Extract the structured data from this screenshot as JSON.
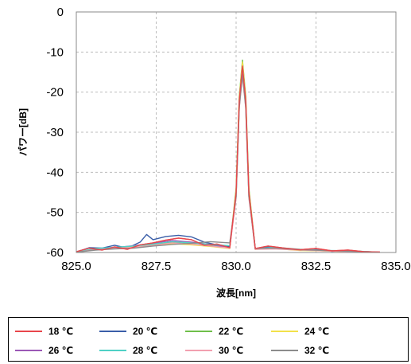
{
  "chart_data": {
    "type": "line",
    "xlabel": "波長[nm]",
    "ylabel": "パワー[dB]",
    "xlim": [
      825.0,
      835.0
    ],
    "ylim": [
      -60,
      0
    ],
    "x_ticks": [
      "825.0",
      "827.5",
      "830.0",
      "832.5",
      "835.0"
    ],
    "y_ticks": [
      "0",
      "-10",
      "-20",
      "-30",
      "-40",
      "-50",
      "-60"
    ],
    "grid": true,
    "legend_position": "bottom",
    "series": [
      {
        "name": "18 ℃",
        "color": "#e8464b",
        "peak_x": 830.2,
        "peak_y": -13.5,
        "points": [
          [
            825.0,
            -59.8
          ],
          [
            825.4,
            -58.9
          ],
          [
            825.8,
            -59.4
          ],
          [
            826.2,
            -58.6
          ],
          [
            826.6,
            -59.2
          ],
          [
            827.0,
            -58.1
          ],
          [
            827.4,
            -57.6
          ],
          [
            827.8,
            -56.9
          ],
          [
            828.2,
            -56.4
          ],
          [
            828.6,
            -56.8
          ],
          [
            829.0,
            -58.2
          ],
          [
            829.4,
            -57.9
          ],
          [
            829.8,
            -58.8
          ],
          [
            830.0,
            -45.0
          ],
          [
            830.1,
            -22.0
          ],
          [
            830.2,
            -13.5
          ],
          [
            830.3,
            -22.0
          ],
          [
            830.4,
            -45.0
          ],
          [
            830.6,
            -59.0
          ],
          [
            831.0,
            -58.4
          ],
          [
            831.5,
            -58.9
          ],
          [
            832.0,
            -59.3
          ],
          [
            832.5,
            -59.0
          ],
          [
            833.0,
            -59.6
          ],
          [
            833.5,
            -59.4
          ],
          [
            834.0,
            -59.8
          ],
          [
            834.5,
            -59.9
          ]
        ]
      },
      {
        "name": "20 ℃",
        "color": "#3a5ea8",
        "peak_x": 830.2,
        "peak_y": -14.5,
        "points": [
          [
            825.0,
            -59.9
          ],
          [
            825.4,
            -58.8
          ],
          [
            825.8,
            -58.9
          ],
          [
            826.2,
            -58.2
          ],
          [
            826.6,
            -58.9
          ],
          [
            827.0,
            -57.4
          ],
          [
            827.2,
            -55.5
          ],
          [
            827.4,
            -56.8
          ],
          [
            827.8,
            -56.0
          ],
          [
            828.2,
            -55.7
          ],
          [
            828.6,
            -56.1
          ],
          [
            829.0,
            -57.4
          ],
          [
            829.4,
            -58.1
          ],
          [
            829.8,
            -58.6
          ],
          [
            830.0,
            -46.0
          ],
          [
            830.1,
            -23.0
          ],
          [
            830.2,
            -14.5
          ],
          [
            830.3,
            -23.0
          ],
          [
            830.4,
            -46.0
          ],
          [
            830.6,
            -59.2
          ],
          [
            831.0,
            -58.6
          ],
          [
            831.5,
            -59.1
          ],
          [
            832.0,
            -59.4
          ],
          [
            832.5,
            -59.2
          ],
          [
            833.0,
            -59.7
          ],
          [
            833.5,
            -59.5
          ],
          [
            834.0,
            -59.9
          ]
        ]
      },
      {
        "name": "22 ℃",
        "color": "#6fbf4a",
        "peak_x": 830.2,
        "peak_y": -12.0,
        "points": [
          [
            825.0,
            -59.9
          ],
          [
            825.6,
            -59.2
          ],
          [
            826.2,
            -58.9
          ],
          [
            826.8,
            -58.8
          ],
          [
            827.4,
            -58.0
          ],
          [
            828.0,
            -57.5
          ],
          [
            828.6,
            -57.9
          ],
          [
            829.2,
            -58.3
          ],
          [
            829.8,
            -58.9
          ],
          [
            830.0,
            -44.0
          ],
          [
            830.1,
            -21.0
          ],
          [
            830.2,
            -12.0
          ],
          [
            830.3,
            -21.0
          ],
          [
            830.4,
            -44.0
          ],
          [
            830.6,
            -59.1
          ],
          [
            831.2,
            -58.9
          ],
          [
            832.0,
            -59.4
          ],
          [
            832.8,
            -59.6
          ],
          [
            833.6,
            -59.7
          ],
          [
            834.4,
            -59.9
          ]
        ]
      },
      {
        "name": "24 ℃",
        "color": "#f2e14a",
        "peak_x": 830.2,
        "peak_y": -12.5,
        "points": [
          [
            825.0,
            -59.9
          ],
          [
            825.6,
            -59.3
          ],
          [
            826.2,
            -59.0
          ],
          [
            826.8,
            -58.6
          ],
          [
            827.4,
            -58.3
          ],
          [
            828.0,
            -57.8
          ],
          [
            828.6,
            -58.1
          ],
          [
            829.2,
            -58.5
          ],
          [
            829.8,
            -59.0
          ],
          [
            830.0,
            -44.5
          ],
          [
            830.1,
            -21.5
          ],
          [
            830.2,
            -12.5
          ],
          [
            830.3,
            -21.5
          ],
          [
            830.4,
            -44.5
          ],
          [
            830.6,
            -59.2
          ],
          [
            831.2,
            -59.0
          ],
          [
            832.0,
            -59.5
          ],
          [
            832.8,
            -59.6
          ],
          [
            833.6,
            -59.8
          ],
          [
            834.4,
            -59.9
          ]
        ]
      },
      {
        "name": "26 ℃",
        "color": "#9b59b6",
        "peak_x": 830.2,
        "peak_y": -14.0,
        "points": [
          [
            825.0,
            -59.9
          ],
          [
            825.6,
            -59.1
          ],
          [
            826.2,
            -58.8
          ],
          [
            826.8,
            -58.3
          ],
          [
            827.4,
            -57.7
          ],
          [
            828.0,
            -57.0
          ],
          [
            828.6,
            -57.4
          ],
          [
            829.2,
            -58.0
          ],
          [
            829.8,
            -58.8
          ],
          [
            830.0,
            -45.5
          ],
          [
            830.1,
            -22.5
          ],
          [
            830.2,
            -14.0
          ],
          [
            830.3,
            -22.5
          ],
          [
            830.4,
            -45.5
          ],
          [
            830.6,
            -59.0
          ],
          [
            831.2,
            -58.8
          ],
          [
            832.0,
            -59.3
          ],
          [
            832.8,
            -59.5
          ],
          [
            833.6,
            -59.7
          ],
          [
            834.4,
            -59.9
          ]
        ]
      },
      {
        "name": "28 ℃",
        "color": "#4fd1c5",
        "peak_x": 830.2,
        "peak_y": -15.0,
        "points": [
          [
            825.0,
            -59.9
          ],
          [
            825.6,
            -59.0
          ],
          [
            826.2,
            -58.7
          ],
          [
            826.8,
            -58.4
          ],
          [
            827.4,
            -57.9
          ],
          [
            828.0,
            -57.3
          ],
          [
            828.6,
            -57.6
          ],
          [
            829.2,
            -58.0
          ],
          [
            829.8,
            -58.3
          ],
          [
            830.0,
            -46.0
          ],
          [
            830.1,
            -23.5
          ],
          [
            830.2,
            -15.0
          ],
          [
            830.3,
            -23.5
          ],
          [
            830.4,
            -46.0
          ],
          [
            830.6,
            -59.1
          ],
          [
            831.2,
            -58.7
          ],
          [
            832.0,
            -59.2
          ],
          [
            832.8,
            -59.5
          ],
          [
            833.6,
            -59.6
          ],
          [
            834.4,
            -59.9
          ]
        ]
      },
      {
        "name": "30 ℃",
        "color": "#f2a0b0",
        "peak_x": 830.2,
        "peak_y": -16.0,
        "points": [
          [
            825.0,
            -59.9
          ],
          [
            825.6,
            -59.3
          ],
          [
            826.2,
            -59.0
          ],
          [
            826.8,
            -58.7
          ],
          [
            827.4,
            -58.2
          ],
          [
            828.0,
            -57.6
          ],
          [
            828.6,
            -57.9
          ],
          [
            829.2,
            -58.4
          ],
          [
            829.8,
            -58.9
          ],
          [
            830.0,
            -46.5
          ],
          [
            830.1,
            -24.0
          ],
          [
            830.2,
            -16.0
          ],
          [
            830.3,
            -24.0
          ],
          [
            830.4,
            -46.5
          ],
          [
            830.6,
            -59.2
          ],
          [
            831.2,
            -59.1
          ],
          [
            832.0,
            -59.4
          ],
          [
            832.8,
            -59.6
          ],
          [
            833.6,
            -59.8
          ],
          [
            834.4,
            -59.9
          ]
        ]
      },
      {
        "name": "32 ℃",
        "color": "#8c8c8c",
        "peak_x": 830.2,
        "peak_y": -15.5,
        "points": [
          [
            825.0,
            -59.9
          ],
          [
            825.6,
            -59.4
          ],
          [
            826.2,
            -59.1
          ],
          [
            826.8,
            -58.9
          ],
          [
            827.4,
            -58.4
          ],
          [
            828.0,
            -58.0
          ],
          [
            828.6,
            -57.7
          ],
          [
            829.2,
            -57.3
          ],
          [
            829.8,
            -57.6
          ],
          [
            830.0,
            -46.0
          ],
          [
            830.1,
            -23.8
          ],
          [
            830.2,
            -15.5
          ],
          [
            830.3,
            -23.8
          ],
          [
            830.4,
            -46.0
          ],
          [
            830.6,
            -59.0
          ],
          [
            831.2,
            -58.9
          ],
          [
            832.0,
            -59.3
          ],
          [
            832.8,
            -59.5
          ],
          [
            833.6,
            -59.7
          ],
          [
            834.4,
            -59.9
          ]
        ]
      }
    ]
  }
}
